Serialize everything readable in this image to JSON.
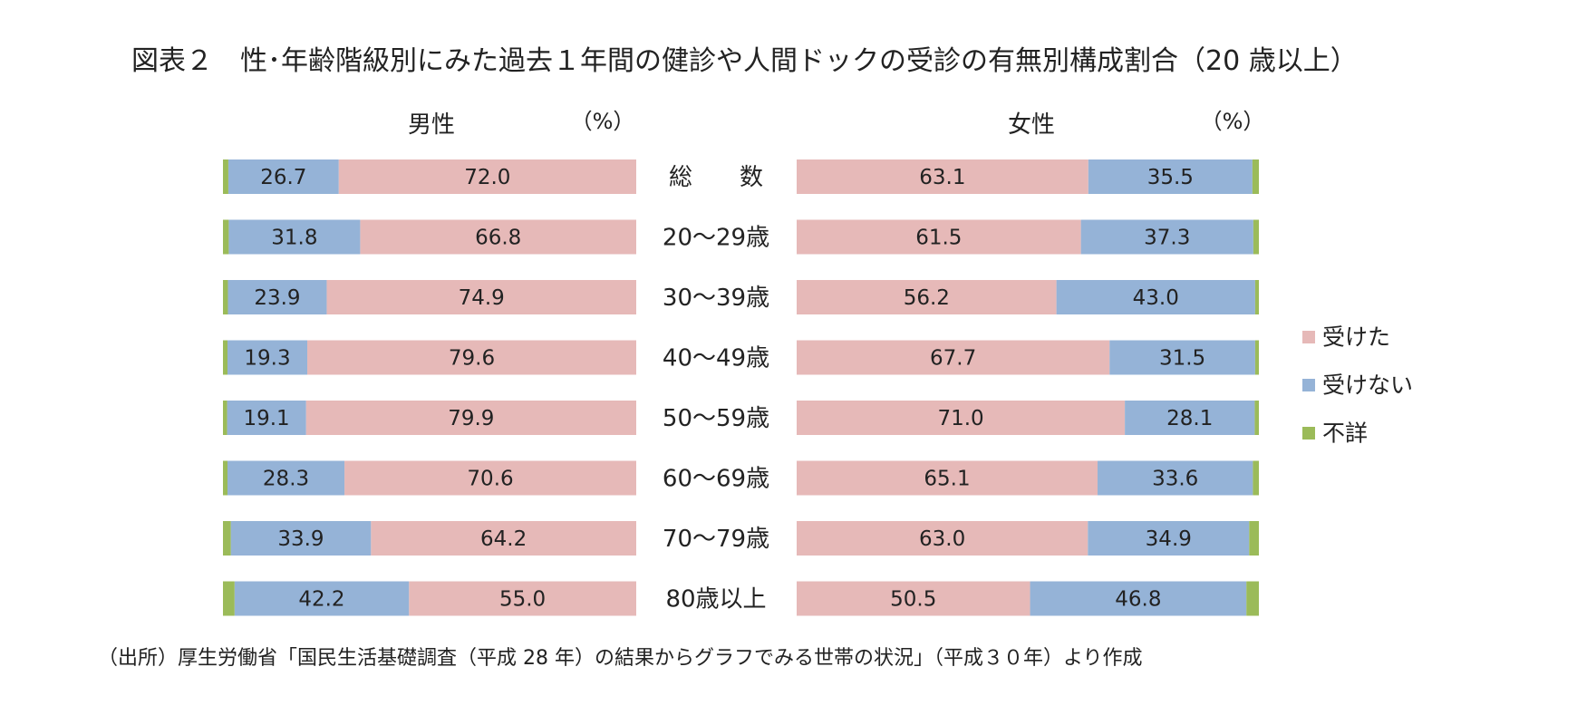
{
  "title": "図表２　性･年齢階級別にみた過去１年間の健診や人間ドックの受診の有無別構成割合（20 歳以上）",
  "source": "（出所）厚生労働省「国民生活基礎調査（平成 28 年）の結果からグラフでみる世帯の状況」（平成３０年）より作成",
  "chart_data": {
    "type": "bar",
    "orientation": "horizontal",
    "stacked": "percent",
    "unit_label": "（%）",
    "categories": [
      "総　　数",
      "20～29歳",
      "30～39歳",
      "40～49歳",
      "50～59歳",
      "60～69歳",
      "70～79歳",
      "80歳以上"
    ],
    "legend": {
      "position": "right",
      "entries": [
        {
          "name": "受けた",
          "color": "#e6b9b8"
        },
        {
          "name": "受けない",
          "color": "#95b3d7"
        },
        {
          "name": "不詳",
          "color": "#9bbb59"
        }
      ]
    },
    "panels": [
      {
        "title": "男性",
        "direction": "right-to-left",
        "series": [
          {
            "name": "受けた",
            "values": [
              72.0,
              66.8,
              74.9,
              79.6,
              79.9,
              70.6,
              64.2,
              55.0
            ]
          },
          {
            "name": "受けない",
            "values": [
              26.7,
              31.8,
              23.9,
              19.3,
              19.1,
              28.3,
              33.9,
              42.2
            ]
          },
          {
            "name": "不詳",
            "values": [
              1.3,
              1.4,
              1.2,
              1.1,
              1.0,
              1.1,
              1.9,
              2.8
            ]
          }
        ]
      },
      {
        "title": "女性",
        "direction": "left-to-right",
        "series": [
          {
            "name": "受けた",
            "values": [
              63.1,
              61.5,
              56.2,
              67.7,
              71.0,
              65.1,
              63.0,
              50.5
            ]
          },
          {
            "name": "受けない",
            "values": [
              35.5,
              37.3,
              43.0,
              31.5,
              28.1,
              33.6,
              34.9,
              46.8
            ]
          },
          {
            "name": "不詳",
            "values": [
              1.4,
              1.2,
              0.8,
              0.8,
              0.9,
              1.3,
              2.1,
              2.7
            ]
          }
        ]
      }
    ]
  }
}
